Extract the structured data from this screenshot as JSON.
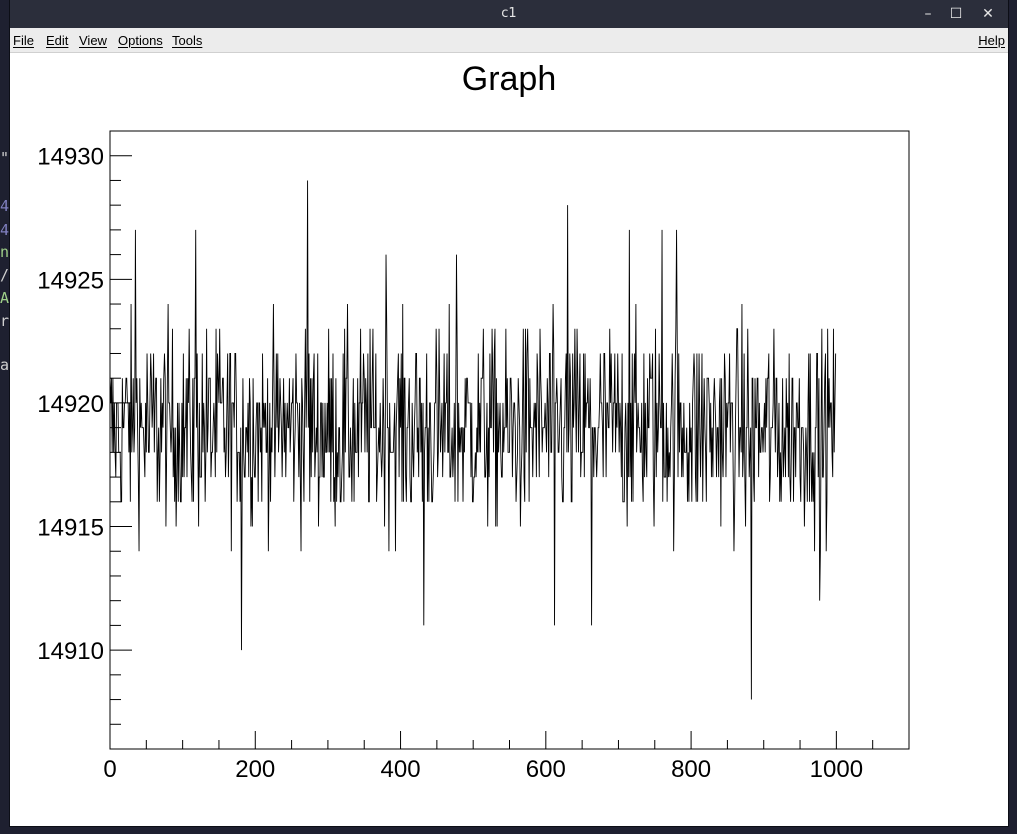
{
  "window": {
    "title": "c1",
    "controls": {
      "minimize": "–",
      "maximize": "☐",
      "close": "✕"
    }
  },
  "menu": {
    "file": "File",
    "edit": "Edit",
    "view": "View",
    "options": "Options",
    "tools": "Tools",
    "help": "Help"
  },
  "background_terminal": {
    "fragments": [
      {
        "text": "\"",
        "color": "#d0d0d0"
      },
      {
        "text": "4",
        "color": "#8080c0"
      },
      {
        "text": "4",
        "color": "#8080c0"
      },
      {
        "text": "n",
        "color": "#9fd089"
      },
      {
        "text": "/",
        "color": "#d0d0d0"
      },
      {
        "text": "A",
        "color": "#9fd089"
      },
      {
        "text": "r",
        "color": "#d0d0d0"
      },
      {
        "text": "a",
        "color": "#d0d0d0"
      }
    ]
  },
  "chart_data": {
    "type": "line",
    "title": "Graph",
    "xlabel": "",
    "ylabel": "",
    "xlim": [
      0,
      1100
    ],
    "ylim": [
      14906,
      14931
    ],
    "x_ticks": [
      0,
      200,
      400,
      600,
      800,
      1000
    ],
    "y_ticks": [
      14910,
      14915,
      14920,
      14925,
      14930
    ],
    "grid": false,
    "line_color": "#000000",
    "n_points": 1000,
    "samples": [
      {
        "x": 181,
        "y": 14910
      },
      {
        "x": 272,
        "y": 14929
      },
      {
        "x": 630,
        "y": 14928
      },
      {
        "x": 883,
        "y": 14908
      },
      {
        "x": 35,
        "y": 14927
      },
      {
        "x": 118,
        "y": 14927
      },
      {
        "x": 380,
        "y": 14926
      },
      {
        "x": 477,
        "y": 14926
      },
      {
        "x": 715,
        "y": 14927
      },
      {
        "x": 760,
        "y": 14927
      },
      {
        "x": 780,
        "y": 14927
      },
      {
        "x": 432,
        "y": 14911
      },
      {
        "x": 612,
        "y": 14911
      },
      {
        "x": 663,
        "y": 14911
      },
      {
        "x": 977,
        "y": 14912
      },
      {
        "x": 998,
        "y": 14920
      }
    ]
  }
}
